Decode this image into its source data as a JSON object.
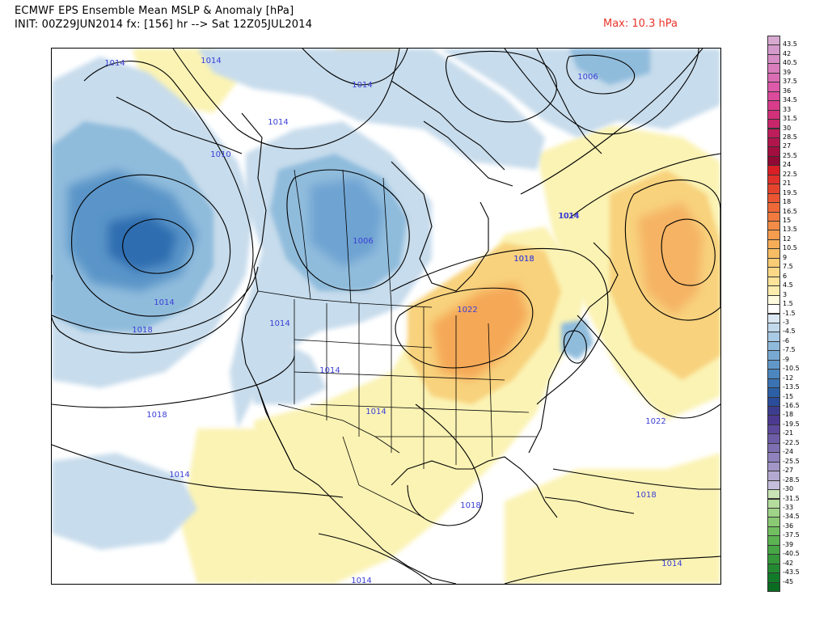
{
  "header": {
    "title_line1": "ECMWF EPS Ensemble Mean MSLP & Anomaly [hPa]",
    "title_line2": "INIT: 00Z29JUN2014 fx: [156] hr --> Sat 12Z05JUL2014",
    "max_label": "Max: 10.3 hPa"
  },
  "colors": {
    "max_label": "#e8352b",
    "contour_label": "#3a3fd6",
    "pos_anom_light": "#fbf3b4",
    "pos_anom_mid": "#f8d27d",
    "pos_anom_strong": "#f5a856",
    "neg_anom_light": "#c7dcec",
    "neg_anom_mid": "#90bcdc",
    "neg_anom_strong": "#3f7fbf",
    "neg_anom_core": "#1f5ea8"
  },
  "isobar_labels": [
    {
      "id": "lbl-1",
      "text": "1014"
    },
    {
      "id": "lbl-2",
      "text": "1014"
    },
    {
      "id": "lbl-3",
      "text": "1014"
    },
    {
      "id": "lbl-4",
      "text": "1014"
    },
    {
      "id": "lbl-5",
      "text": "1010"
    },
    {
      "id": "lbl-6",
      "text": "1006"
    },
    {
      "id": "lbl-7",
      "text": "1006"
    },
    {
      "id": "lbl-8",
      "text": "1014"
    },
    {
      "id": "lbl-9",
      "text": "1018"
    },
    {
      "id": "lbl-10",
      "text": "1014"
    },
    {
      "id": "lbl-11",
      "text": "1014"
    },
    {
      "id": "lbl-12",
      "text": "1014"
    },
    {
      "id": "lbl-13",
      "text": "1018"
    },
    {
      "id": "lbl-14",
      "text": "1014"
    },
    {
      "id": "lbl-15",
      "text": "1014"
    },
    {
      "id": "lbl-16",
      "text": "1018"
    },
    {
      "id": "lbl-17",
      "text": "1022"
    },
    {
      "id": "lbl-18",
      "text": "1018"
    },
    {
      "id": "lbl-19",
      "text": "1014"
    },
    {
      "id": "lbl-20",
      "text": "1018"
    },
    {
      "id": "lbl-21",
      "text": "1022"
    },
    {
      "id": "lbl-22",
      "text": "1018"
    },
    {
      "id": "lbl-23",
      "text": "1014"
    },
    {
      "id": "lbl-24",
      "text": "1014"
    }
  ],
  "legend": {
    "labels": [
      "43.5",
      "42",
      "40.5",
      "39",
      "37.5",
      "36",
      "34.5",
      "33",
      "31.5",
      "30",
      "28.5",
      "27",
      "25.5",
      "24",
      "22.5",
      "21",
      "19.5",
      "18",
      "16.5",
      "15",
      "13.5",
      "12",
      "10.5",
      "9",
      "7.5",
      "6",
      "4.5",
      "3",
      "1.5",
      "-1.5",
      "-3",
      "-4.5",
      "-6",
      "-7.5",
      "-9",
      "-10.5",
      "-12",
      "-13.5",
      "-15",
      "-16.5",
      "-18",
      "-19.5",
      "-21",
      "-22.5",
      "-24",
      "-25.5",
      "-27",
      "-28.5",
      "-30",
      "-31.5",
      "-33",
      "-34.5",
      "-36",
      "-37.5",
      "-39",
      "-40.5",
      "-42",
      "-43.5",
      "-45"
    ],
    "colors": [
      "#d7a9d0",
      "#d49acb",
      "#d68cc4",
      "#d97dbd",
      "#da6cb4",
      "#dc5aa9",
      "#db4a9b",
      "#d83c8b",
      "#d2307a",
      "#c8266a",
      "#bd1d5a",
      "#b0154c",
      "#a10e3f",
      "#8f0934",
      "#d91f26",
      "#e0302a",
      "#e6432d",
      "#eb5532",
      "#ef6838",
      "#f27a3f",
      "#f48b46",
      "#f69c4e",
      "#f7ad58",
      "#f8bd64",
      "#f9cb74",
      "#fad886",
      "#fbe399",
      "#fcecad",
      "#fefbdf",
      "#ffffff",
      "#dbe8f3",
      "#c2d9ec",
      "#a9cae4",
      "#90badc",
      "#78a9d3",
      "#6198c9",
      "#4c86bf",
      "#3b73b3",
      "#2c5fa5",
      "#2b4c9a",
      "#3d3d8f",
      "#4c3a91",
      "#5d4a9c",
      "#6e5ca7",
      "#7f6fb2",
      "#9082bc",
      "#a196c6",
      "#b2a9d0",
      "#c4bddb",
      "#c9e4b4",
      "#b4dc9d",
      "#9fd388",
      "#89c974",
      "#72bf62",
      "#5cb352",
      "#47a645",
      "#35983a",
      "#238a31",
      "#127b29",
      "#0a6c22"
    ]
  }
}
